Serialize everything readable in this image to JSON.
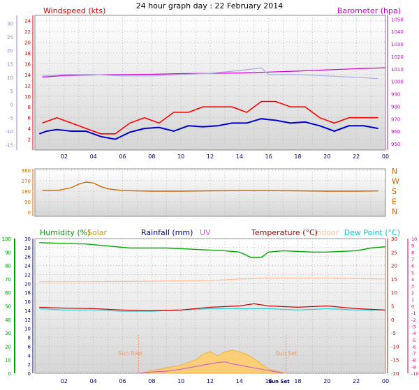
{
  "chart_data": [
    {
      "type": "line",
      "title": "24 hour graph day : 22 February 2014",
      "left_axis_label": "Windspeed (kts)",
      "left_axis_color": "#cc0000",
      "left_ticks": [
        2,
        4,
        6,
        8,
        10,
        12,
        14,
        16,
        18,
        20,
        22,
        24
      ],
      "left_ylim": [
        0,
        25
      ],
      "far_left_ticks": [
        -15,
        -10,
        -5,
        0,
        5,
        10,
        15,
        20,
        25,
        30
      ],
      "far_left_color": "#8888dd",
      "right_axis_label": "Barometer (hpa)",
      "right_axis_color": "#cc00cc",
      "right_ticks": [
        950,
        960,
        970,
        980,
        990,
        1000,
        1010,
        1020,
        1030,
        1040,
        1050
      ],
      "right_ylim": [
        945,
        1053
      ],
      "x_ticks": [
        "02",
        "04",
        "06",
        "08",
        "10",
        "12",
        "14",
        "16",
        "18",
        "20",
        "22",
        "00"
      ],
      "xlim": [
        0,
        24
      ],
      "grid": true,
      "series": [
        {
          "color": "#ff0000",
          "axis": "left",
          "x": [
            0.5,
            1.5,
            2.5,
            3.5,
            4.5,
            5.5,
            6.5,
            7.5,
            8.5,
            9.5,
            10.5,
            11.5,
            12.5,
            13.5,
            14.5,
            15.5,
            16.5,
            17.5,
            18.5,
            19.5,
            20.5,
            21.5,
            22.5,
            23.5
          ],
          "y": [
            5,
            6,
            5,
            4,
            3,
            3,
            5,
            6,
            5,
            7,
            7,
            8,
            8,
            8,
            7,
            9,
            9,
            8,
            8,
            6,
            5,
            6,
            6,
            6
          ]
        },
        {
          "color": "#0000cc",
          "axis": "left",
          "x": [
            0.3,
            0.8,
            1.5,
            2.5,
            3.5,
            4.5,
            5.5,
            6.5,
            7.5,
            8.5,
            9.5,
            10.5,
            11.5,
            12.5,
            13.5,
            14.5,
            15.5,
            16.5,
            17.5,
            18.5,
            19.5,
            20.5,
            21.5,
            22.5,
            23.5
          ],
          "y": [
            3,
            3.5,
            3.8,
            3.5,
            3.5,
            2.5,
            2,
            3.3,
            4,
            4.2,
            3.5,
            4.5,
            4.3,
            4.5,
            5,
            5,
            5.8,
            5.5,
            5,
            5.2,
            4.5,
            3.5,
            4.5,
            4.5,
            4
          ]
        },
        {
          "color": "#cc00cc",
          "axis": "right",
          "x": [
            0.5,
            2,
            4,
            6,
            8,
            10,
            12,
            14,
            16,
            18,
            20,
            22,
            24
          ],
          "y": [
            1003.5,
            1004.7,
            1005.2,
            1005.5,
            1005.7,
            1006.3,
            1006.5,
            1006.8,
            1007.5,
            1008.3,
            1009.3,
            1010.2,
            1011
          ]
        },
        {
          "color": "#aaaaee",
          "axis": "far_left",
          "x": [
            0.5,
            2,
            4,
            6,
            8,
            10,
            12,
            14,
            15.5,
            16,
            18,
            20,
            22,
            23.5
          ],
          "y": [
            10.5,
            11,
            11,
            10.5,
            10.5,
            11,
            11.5,
            12.5,
            13.5,
            11,
            11,
            10.5,
            10,
            9.5
          ]
        }
      ]
    },
    {
      "type": "line",
      "left_ticks": [
        0,
        90,
        180,
        270,
        360
      ],
      "ylim": [
        0,
        360
      ],
      "right_labels": [
        "N",
        "W",
        "S",
        "E",
        "N"
      ],
      "right_labels_color": "#cc6600",
      "xlim": [
        0,
        24
      ],
      "grid": true,
      "series": [
        {
          "color": "#cc6600",
          "x": [
            0.5,
            1.5,
            2.5,
            3,
            3.5,
            4,
            4.5,
            5,
            6,
            8,
            10,
            12,
            14,
            16,
            18,
            20,
            22,
            23.5
          ],
          "y": [
            185,
            185,
            210,
            240,
            258,
            250,
            220,
            200,
            185,
            180,
            180,
            183,
            185,
            185,
            183,
            180,
            180,
            182
          ]
        }
      ]
    },
    {
      "type": "line",
      "legend": [
        {
          "label": "Humidity (%)",
          "color": "#009900"
        },
        {
          "label": "Solar",
          "color": "#cc9900"
        },
        {
          "label": "Rainfall (mm)",
          "color": "#000099"
        },
        {
          "label": "UV",
          "color": "#cc66cc"
        },
        {
          "label": "Temperature (°C)",
          "color": "#990000"
        },
        {
          "label": "Indoor",
          "color": "#ffbb99"
        },
        {
          "label": "Dew Point (°C)",
          "color": "#00cccc"
        }
      ],
      "humidity_ticks": [
        0,
        10,
        20,
        30,
        40,
        50,
        60,
        70,
        80,
        90,
        100
      ],
      "humidity_color": "#009900",
      "rain_ticks": [
        0,
        2,
        4,
        6,
        8,
        10,
        12,
        14,
        16,
        18,
        20,
        22,
        24,
        26,
        28,
        30
      ],
      "rain_color": "#000066",
      "temp_ticks": [
        -20,
        -15,
        -10,
        -5,
        0,
        5,
        10,
        15,
        20,
        25,
        30
      ],
      "temp_color": "#cc0000",
      "dew_ticks": [
        -10,
        -9,
        -8,
        -7,
        -6,
        -5,
        -4,
        -3,
        -2,
        -1,
        0,
        1,
        2,
        3,
        4,
        5,
        6,
        7,
        8,
        9,
        10
      ],
      "dew_color": "#cc0066",
      "x_tick_labels": [
        "02",
        "04",
        "06",
        "08",
        "10",
        "12",
        "14",
        "16",
        "Sun Set",
        "18",
        "20",
        "22",
        "00"
      ],
      "x_tick_hours": [
        2,
        4,
        6,
        8,
        10,
        12,
        14,
        16,
        16.7,
        18,
        20,
        22,
        24
      ],
      "sun_rise_label": "Sun Rise",
      "sun_rise_hour": 7.1,
      "sun_set_label": "Sun Set",
      "sun_set_hour": 17.2,
      "xlim": [
        0,
        24
      ],
      "grid": true,
      "series": [
        {
          "name": "Humidity (%)",
          "color": "#00aa00",
          "axis": "humidity",
          "x": [
            0.3,
            2,
            3.5,
            5.5,
            6.5,
            9,
            11,
            13,
            14,
            14.8,
            15.5,
            16,
            17,
            19,
            20,
            22,
            23,
            24
          ],
          "y": [
            97,
            96.5,
            96,
            94,
            93,
            93,
            92,
            91,
            90,
            86,
            86,
            90,
            91,
            90,
            90,
            91,
            93,
            94
          ]
        },
        {
          "name": "Temperature (°C)",
          "color": "#cc0000",
          "axis": "temp",
          "x": [
            0.3,
            2,
            4,
            6,
            8,
            10,
            12,
            14,
            15,
            16,
            18,
            20,
            22,
            24
          ],
          "y": [
            4.5,
            4.2,
            4,
            3.5,
            3.2,
            3.5,
            4.5,
            5,
            5.8,
            5,
            4.5,
            5,
            4,
            3.5
          ]
        },
        {
          "name": "Dew Point (°C)",
          "color": "#33cccc",
          "axis": "temp",
          "x": [
            0.3,
            2,
            4,
            6,
            8,
            10,
            12,
            14,
            16,
            18,
            20,
            22,
            24
          ],
          "y": [
            4,
            3.5,
            3.5,
            3,
            3,
            3.5,
            4,
            4,
            4,
            3.5,
            4,
            3.5,
            3.5
          ]
        },
        {
          "name": "Indoor",
          "color": "#ffbb99",
          "axis": "temp",
          "x": [
            0.3,
            4,
            8,
            12,
            14,
            16,
            20,
            24
          ],
          "y": [
            14,
            14,
            14.2,
            14.4,
            15,
            15.3,
            15.3,
            15
          ]
        },
        {
          "name": "UV",
          "color": "#cc66cc",
          "axis": "humidity",
          "x": [
            7.2,
            8,
            9,
            10,
            11,
            11.5,
            12,
            12.5,
            13,
            13.5,
            14,
            14.5,
            15,
            15.5,
            16,
            17
          ],
          "y": [
            0,
            1,
            1.5,
            3,
            5,
            6,
            7,
            8,
            8.5,
            7,
            6,
            5,
            4,
            3,
            2,
            0
          ]
        },
        {
          "name": "Solar",
          "color": "#ffcc66",
          "axis": "humidity",
          "x": [
            7.2,
            8,
            9,
            10,
            11,
            11.5,
            12,
            12.5,
            13,
            13.5,
            14,
            14.5,
            15,
            15.5,
            16,
            17.2
          ],
          "y": [
            0,
            2,
            4,
            6,
            10,
            14,
            16,
            13,
            16,
            17,
            16,
            14,
            11,
            7,
            3,
            0
          ]
        }
      ]
    }
  ]
}
